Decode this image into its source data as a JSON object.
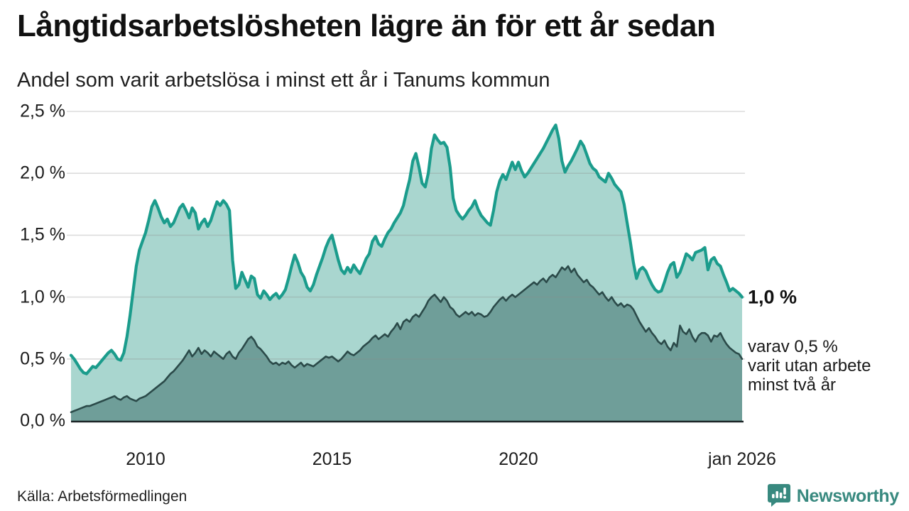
{
  "header": {
    "title": "Långtidsarbetslösheten lägre än för ett år sedan",
    "subtitle": "Andel som varit arbetslösa i minst ett år i Tanums kommun"
  },
  "footer": {
    "source": "Källa: Arbetsförmedlingen",
    "brand_name": "Newsworthy",
    "brand_icon": "bar-chart-speech-bubble-icon",
    "brand_color": "#38897f"
  },
  "annotations": {
    "latest_one_year": "1,0 %",
    "whereof_line1": "varav 0,5 %",
    "whereof_line2": "varit utan arbete",
    "whereof_line3": "minst två år"
  },
  "colors": {
    "line_1yr": "#1b9c8c",
    "fill_1yr": "#a9d6cf",
    "line_2yr": "#2b4a49",
    "fill_2yr": "#6f9e99",
    "gridline": "#8c8c8c",
    "baseline": "#1c2527",
    "text": "#1a1a1a"
  },
  "chart_data": {
    "type": "area",
    "title": "Andel som varit arbetslösa i minst ett år i Tanums kommun",
    "x_unit": "month",
    "x_start": "2008-01",
    "x_end": "2026-01",
    "x_range_years": [
      2008.0,
      2026.0
    ],
    "ylim": [
      0,
      2.5
    ],
    "grid": "horizontal",
    "legend_position": "none",
    "y_axis_ticks": [
      {
        "label": "0,0 %",
        "value": 0.0
      },
      {
        "label": "0,5 %",
        "value": 0.5
      },
      {
        "label": "1,0 %",
        "value": 1.0
      },
      {
        "label": "1,5 %",
        "value": 1.5
      },
      {
        "label": "2,0 %",
        "value": 2.0
      },
      {
        "label": "2,5 %",
        "value": 2.5
      }
    ],
    "x_axis_ticks": [
      {
        "label": "2010",
        "year": 2010.0
      },
      {
        "label": "2015",
        "year": 2015.0
      },
      {
        "label": "2020",
        "year": 2020.0
      },
      {
        "label": "jan 2026",
        "year": 2026.0
      }
    ],
    "series": [
      {
        "name": "Andel arbetslösa minst ett år",
        "latest_value_pct": 1.0,
        "values": [
          0.53,
          0.5,
          0.46,
          0.42,
          0.39,
          0.38,
          0.41,
          0.44,
          0.43,
          0.46,
          0.49,
          0.52,
          0.55,
          0.57,
          0.54,
          0.5,
          0.49,
          0.55,
          0.68,
          0.85,
          1.05,
          1.25,
          1.38,
          1.45,
          1.52,
          1.62,
          1.73,
          1.78,
          1.72,
          1.65,
          1.6,
          1.63,
          1.57,
          1.6,
          1.66,
          1.72,
          1.75,
          1.7,
          1.64,
          1.72,
          1.68,
          1.55,
          1.6,
          1.63,
          1.57,
          1.62,
          1.7,
          1.77,
          1.74,
          1.78,
          1.75,
          1.7,
          1.3,
          1.07,
          1.1,
          1.2,
          1.14,
          1.08,
          1.17,
          1.15,
          1.02,
          0.99,
          1.05,
          1.02,
          0.98,
          1.01,
          1.03,
          0.99,
          1.02,
          1.06,
          1.15,
          1.25,
          1.34,
          1.28,
          1.2,
          1.16,
          1.08,
          1.05,
          1.1,
          1.18,
          1.25,
          1.32,
          1.4,
          1.46,
          1.5,
          1.4,
          1.3,
          1.22,
          1.19,
          1.24,
          1.2,
          1.26,
          1.22,
          1.19,
          1.25,
          1.31,
          1.35,
          1.45,
          1.49,
          1.43,
          1.41,
          1.47,
          1.52,
          1.55,
          1.6,
          1.64,
          1.68,
          1.74,
          1.85,
          1.95,
          2.1,
          2.16,
          2.05,
          1.92,
          1.89,
          2.0,
          2.2,
          2.31,
          2.27,
          2.24,
          2.25,
          2.21,
          2.05,
          1.8,
          1.7,
          1.66,
          1.63,
          1.66,
          1.7,
          1.73,
          1.78,
          1.71,
          1.66,
          1.63,
          1.6,
          1.58,
          1.7,
          1.85,
          1.94,
          1.99,
          1.95,
          2.02,
          2.09,
          2.03,
          2.09,
          2.02,
          1.97,
          2.0,
          2.04,
          2.08,
          2.12,
          2.16,
          2.2,
          2.25,
          2.3,
          2.35,
          2.39,
          2.28,
          2.1,
          2.01,
          2.06,
          2.1,
          2.15,
          2.2,
          2.26,
          2.22,
          2.15,
          2.08,
          2.04,
          2.02,
          1.97,
          1.95,
          1.93,
          2.0,
          1.96,
          1.91,
          1.88,
          1.85,
          1.75,
          1.6,
          1.45,
          1.28,
          1.15,
          1.22,
          1.24,
          1.21,
          1.15,
          1.1,
          1.06,
          1.04,
          1.05,
          1.12,
          1.2,
          1.26,
          1.28,
          1.16,
          1.2,
          1.27,
          1.35,
          1.33,
          1.3,
          1.36,
          1.37,
          1.38,
          1.4,
          1.22,
          1.3,
          1.32,
          1.27,
          1.25,
          1.18,
          1.12,
          1.05,
          1.07,
          1.05,
          1.03,
          1.0
        ]
      },
      {
        "name": "Andel utan arbete minst två år",
        "latest_value_pct": 0.5,
        "values": [
          0.07,
          0.08,
          0.09,
          0.1,
          0.11,
          0.12,
          0.12,
          0.13,
          0.14,
          0.15,
          0.16,
          0.17,
          0.18,
          0.19,
          0.2,
          0.18,
          0.17,
          0.19,
          0.2,
          0.18,
          0.17,
          0.16,
          0.18,
          0.19,
          0.2,
          0.22,
          0.24,
          0.26,
          0.28,
          0.3,
          0.32,
          0.35,
          0.38,
          0.4,
          0.43,
          0.46,
          0.49,
          0.53,
          0.57,
          0.52,
          0.55,
          0.59,
          0.54,
          0.57,
          0.55,
          0.52,
          0.56,
          0.54,
          0.52,
          0.5,
          0.54,
          0.56,
          0.52,
          0.5,
          0.55,
          0.58,
          0.62,
          0.66,
          0.68,
          0.65,
          0.6,
          0.58,
          0.55,
          0.52,
          0.48,
          0.46,
          0.47,
          0.45,
          0.47,
          0.46,
          0.48,
          0.45,
          0.43,
          0.45,
          0.47,
          0.44,
          0.46,
          0.45,
          0.44,
          0.46,
          0.48,
          0.5,
          0.52,
          0.51,
          0.52,
          0.5,
          0.48,
          0.5,
          0.53,
          0.56,
          0.54,
          0.53,
          0.55,
          0.57,
          0.6,
          0.62,
          0.64,
          0.67,
          0.69,
          0.66,
          0.68,
          0.7,
          0.68,
          0.72,
          0.75,
          0.79,
          0.74,
          0.8,
          0.82,
          0.8,
          0.84,
          0.86,
          0.84,
          0.88,
          0.92,
          0.97,
          1.0,
          1.02,
          0.99,
          0.96,
          1.0,
          0.97,
          0.92,
          0.9,
          0.86,
          0.84,
          0.86,
          0.88,
          0.86,
          0.88,
          0.85,
          0.87,
          0.86,
          0.84,
          0.85,
          0.88,
          0.92,
          0.95,
          0.98,
          1.0,
          0.97,
          1.0,
          1.02,
          1.0,
          1.02,
          1.04,
          1.06,
          1.08,
          1.1,
          1.12,
          1.1,
          1.13,
          1.15,
          1.12,
          1.16,
          1.18,
          1.16,
          1.2,
          1.24,
          1.22,
          1.25,
          1.2,
          1.23,
          1.18,
          1.15,
          1.12,
          1.14,
          1.1,
          1.08,
          1.05,
          1.02,
          1.04,
          1.0,
          0.97,
          1.0,
          0.96,
          0.93,
          0.95,
          0.92,
          0.94,
          0.93,
          0.9,
          0.85,
          0.8,
          0.76,
          0.72,
          0.75,
          0.71,
          0.68,
          0.64,
          0.62,
          0.65,
          0.6,
          0.57,
          0.63,
          0.6,
          0.77,
          0.72,
          0.7,
          0.74,
          0.68,
          0.64,
          0.69,
          0.71,
          0.71,
          0.69,
          0.64,
          0.69,
          0.68,
          0.71,
          0.66,
          0.62,
          0.59,
          0.57,
          0.55,
          0.54,
          0.5
        ]
      }
    ]
  }
}
